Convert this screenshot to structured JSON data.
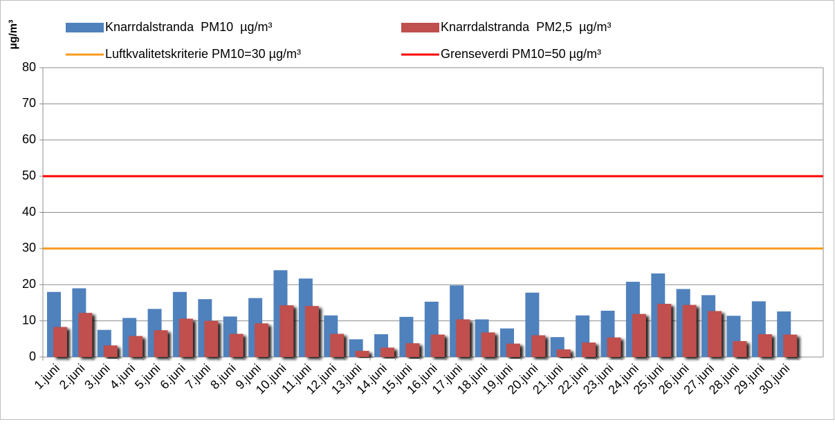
{
  "chart_data": {
    "type": "bar",
    "y_label": "µg/m³",
    "categories": [
      "1.juni",
      "2.juni",
      "3.juni",
      "4.juni",
      "5.juni",
      "6.juni",
      "7.juni",
      "8.juni",
      "9.juni",
      "10.juni",
      "11.juni",
      "12.juni",
      "13.juni",
      "14.juni",
      "15.juni",
      "16.juni",
      "17.juni",
      "18.juni",
      "19.juni",
      "20.juni",
      "21.juni",
      "22.juni",
      "23.juni",
      "24.juni",
      "25.juni",
      "26.juni",
      "27.juni",
      "28.juni",
      "29.juni",
      "30.juni",
      null
    ],
    "series": [
      {
        "name": "Knarrdalstranda  PM10  µg/m³",
        "color": "#4f81bd",
        "values": [
          18,
          19,
          7.5,
          10.8,
          13.3,
          18,
          16,
          11.2,
          16.3,
          24,
          21.7,
          11.5,
          4.9,
          6.3,
          11.1,
          15.3,
          19.8,
          10.4,
          7.9,
          17.8,
          5.5,
          11.5,
          12.8,
          20.8,
          23.1,
          18.8,
          17.1,
          11.4,
          15.4,
          12.6,
          null
        ]
      },
      {
        "name": "Knarrdalstranda  PM2,5  µg/m³",
        "color": "#c0504d",
        "values": [
          8.3,
          12.2,
          3.2,
          5.8,
          7.4,
          10.6,
          10,
          6.4,
          9.3,
          14.3,
          14.1,
          6.4,
          1.7,
          2.6,
          3.8,
          6.2,
          10.4,
          6.8,
          3.7,
          6.0,
          2.1,
          4.0,
          5.4,
          11.9,
          14.7,
          14.4,
          12.7,
          4.4,
          6.3,
          6.2,
          null
        ]
      }
    ],
    "reference_lines": [
      {
        "name": "Luftkvalitetskriterie PM10=30 µg/m³",
        "color": "#f79a1e",
        "value": 30
      },
      {
        "name": "Grenseverdi PM10=50 µg/m³",
        "color": "#ff0000",
        "value": 50
      }
    ],
    "ylim": [
      0,
      80
    ],
    "yticks": [
      0,
      10,
      20,
      30,
      40,
      50,
      60,
      70,
      80
    ],
    "grid": true
  }
}
